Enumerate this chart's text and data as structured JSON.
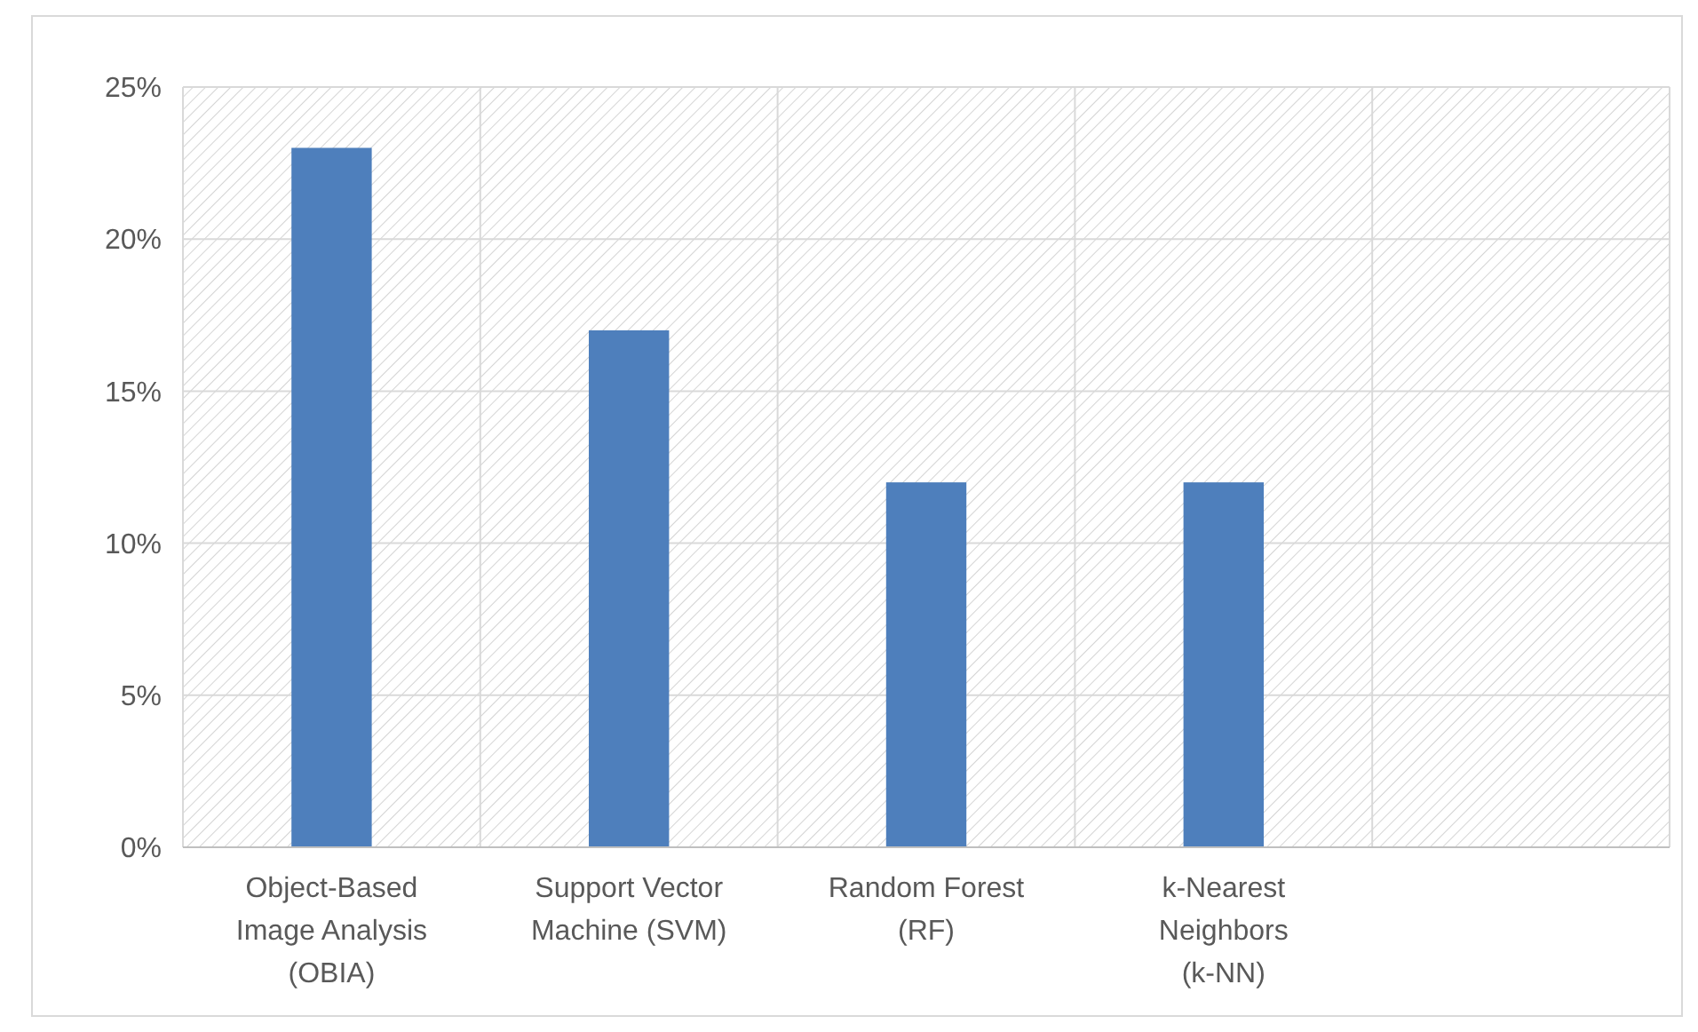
{
  "chart_data": {
    "type": "bar",
    "categories": [
      "Object-Based Image Analysis (OBIA)",
      "Support Vector Machine (SVM)",
      "Random Forest (RF)",
      "k-Nearest Neighbors (k-NN)",
      null
    ],
    "values": [
      23,
      17,
      12,
      12,
      null
    ],
    "color": "#4e7fbc",
    "ylim": [
      0,
      25
    ],
    "yticks": [
      {
        "value": 0,
        "label": "0%"
      },
      {
        "value": 5,
        "label": "5%"
      },
      {
        "value": 10,
        "label": "10%"
      },
      {
        "value": 15,
        "label": "15%"
      },
      {
        "value": 20,
        "label": "20%"
      },
      {
        "value": 25,
        "label": "25%"
      }
    ],
    "grid": true
  }
}
